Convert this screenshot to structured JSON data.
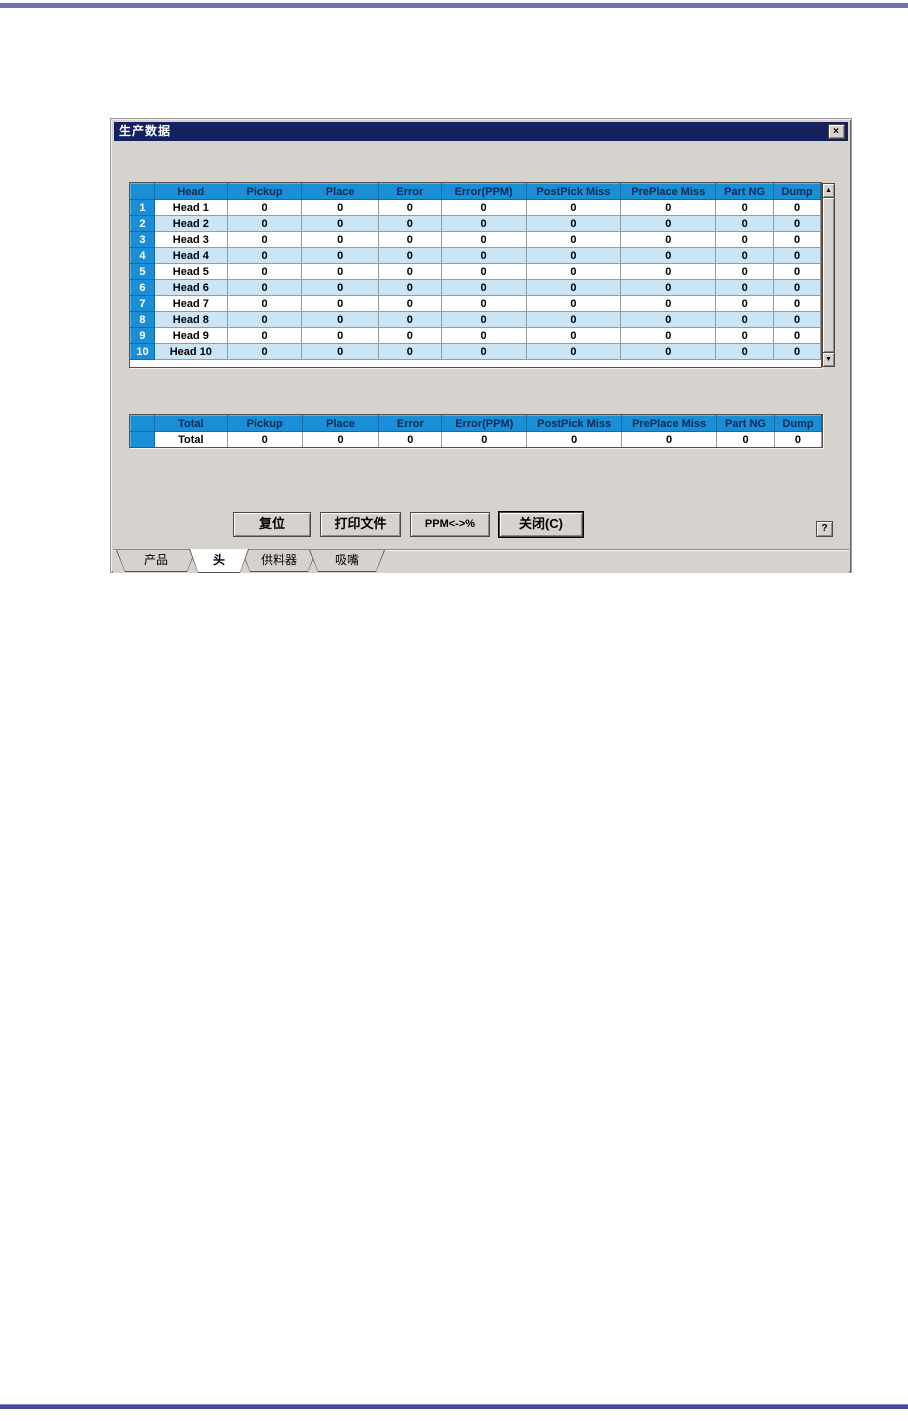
{
  "dialog": {
    "title": "生产数据",
    "close_icon": "×",
    "help_label": "?"
  },
  "head_table": {
    "corner": "",
    "columns": [
      "Head",
      "Pickup",
      "Place",
      "Error",
      "Error(PPM)",
      "PostPick Miss",
      "PrePlace Miss",
      "Part NG",
      "Dump"
    ],
    "rows": [
      {
        "num": "1",
        "label": "Head 1",
        "values": [
          "0",
          "0",
          "0",
          "0",
          "0",
          "0",
          "0",
          "0"
        ]
      },
      {
        "num": "2",
        "label": "Head 2",
        "values": [
          "0",
          "0",
          "0",
          "0",
          "0",
          "0",
          "0",
          "0"
        ]
      },
      {
        "num": "3",
        "label": "Head 3",
        "values": [
          "0",
          "0",
          "0",
          "0",
          "0",
          "0",
          "0",
          "0"
        ]
      },
      {
        "num": "4",
        "label": "Head 4",
        "values": [
          "0",
          "0",
          "0",
          "0",
          "0",
          "0",
          "0",
          "0"
        ]
      },
      {
        "num": "5",
        "label": "Head 5",
        "values": [
          "0",
          "0",
          "0",
          "0",
          "0",
          "0",
          "0",
          "0"
        ]
      },
      {
        "num": "6",
        "label": "Head 6",
        "values": [
          "0",
          "0",
          "0",
          "0",
          "0",
          "0",
          "0",
          "0"
        ]
      },
      {
        "num": "7",
        "label": "Head 7",
        "values": [
          "0",
          "0",
          "0",
          "0",
          "0",
          "0",
          "0",
          "0"
        ]
      },
      {
        "num": "8",
        "label": "Head 8",
        "values": [
          "0",
          "0",
          "0",
          "0",
          "0",
          "0",
          "0",
          "0"
        ]
      },
      {
        "num": "9",
        "label": "Head 9",
        "values": [
          "0",
          "0",
          "0",
          "0",
          "0",
          "0",
          "0",
          "0"
        ]
      },
      {
        "num": "10",
        "label": "Head 10",
        "values": [
          "0",
          "0",
          "0",
          "0",
          "0",
          "0",
          "0",
          "0"
        ]
      }
    ],
    "scrollbar": {
      "up_icon": "▲",
      "down_icon": "▼"
    }
  },
  "total_table": {
    "corner": "",
    "columns": [
      "Total",
      "Pickup",
      "Place",
      "Error",
      "Error(PPM)",
      "PostPick Miss",
      "PrePlace Miss",
      "Part NG",
      "Dump"
    ],
    "rows": [
      {
        "num": "",
        "label": "Total",
        "values": [
          "0",
          "0",
          "0",
          "0",
          "0",
          "0",
          "0",
          "0"
        ]
      }
    ]
  },
  "buttons": {
    "reset": "复位",
    "print": "打印文件",
    "ppm": "PPM<->%",
    "close": "关闭(C)"
  },
  "tabs": [
    {
      "label": "产品",
      "active": false
    },
    {
      "label": "头",
      "active": true
    },
    {
      "label": "供料器",
      "active": false
    },
    {
      "label": "吸嘴",
      "active": false
    }
  ],
  "colors": {
    "header_bg": "#1b8fd6",
    "header_text": "#0b2a5a",
    "row_alt_bg": "#cbe5f6",
    "titlebar_bg": "#14215e",
    "dialog_bg": "#d6d3ce",
    "rule_top": "#7173af",
    "rule_bottom": "#4747a6"
  }
}
